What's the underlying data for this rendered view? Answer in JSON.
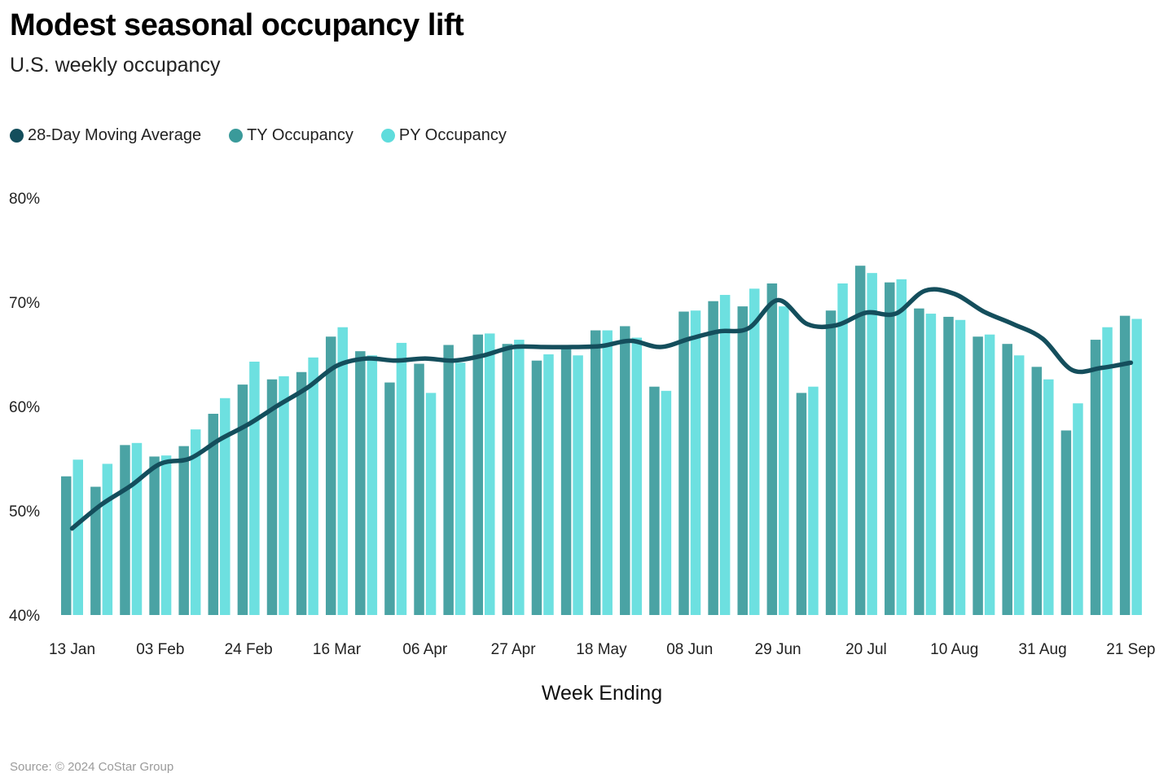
{
  "title": "Modest seasonal occupancy lift",
  "subtitle": "U.S. weekly occupancy",
  "source": "Source: © 2024 CoStar Group",
  "colors": {
    "ty": "#4aa3a4",
    "py": "#6de0e0",
    "ma": "#144e5c",
    "ty_swatch": "#3a9a9a",
    "py_swatch": "#5fdcdc"
  },
  "chart_data": {
    "type": "bar",
    "title": "Modest seasonal occupancy lift",
    "subtitle": "U.S. weekly occupancy",
    "xlabel": "Week Ending",
    "ylabel": "",
    "ylim": [
      40,
      80
    ],
    "yticks": [
      "40%",
      "50%",
      "60%",
      "70%",
      "80%"
    ],
    "yticks_values": [
      40,
      50,
      60,
      70,
      80
    ],
    "xticks": [
      "13 Jan",
      "03 Feb",
      "24 Feb",
      "16 Mar",
      "06 Apr",
      "27 Apr",
      "18 May",
      "08 Jun",
      "29 Jun",
      "20 Jul",
      "10 Aug",
      "31 Aug",
      "21 Sep"
    ],
    "xtick_every": 3,
    "categories": [
      "13 Jan",
      "20 Jan",
      "27 Jan",
      "03 Feb",
      "10 Feb",
      "17 Feb",
      "24 Feb",
      "02 Mar",
      "09 Mar",
      "16 Mar",
      "23 Mar",
      "30 Mar",
      "06 Apr",
      "13 Apr",
      "20 Apr",
      "27 Apr",
      "04 May",
      "11 May",
      "18 May",
      "25 May",
      "01 Jun",
      "08 Jun",
      "15 Jun",
      "22 Jun",
      "29 Jun",
      "06 Jul",
      "13 Jul",
      "20 Jul",
      "27 Jul",
      "03 Aug",
      "10 Aug",
      "17 Aug",
      "24 Aug",
      "31 Aug",
      "07 Sep",
      "14 Sep",
      "21 Sep"
    ],
    "legend": [
      "28-Day Moving Average",
      "TY Occupancy",
      "PY Occupancy"
    ],
    "series": [
      {
        "name": "TY Occupancy",
        "type": "bar",
        "values": [
          53.3,
          52.3,
          56.3,
          55.2,
          56.2,
          59.3,
          62.1,
          62.6,
          63.3,
          66.7,
          65.3,
          62.3,
          64.1,
          65.9,
          66.9,
          66.0,
          64.4,
          65.9,
          67.3,
          67.7,
          61.9,
          69.1,
          70.1,
          69.6,
          71.8,
          61.3,
          69.2,
          73.5,
          71.9,
          69.4,
          68.6,
          66.7,
          66.0,
          63.8,
          57.7,
          66.4,
          68.7
        ]
      },
      {
        "name": "PY Occupancy",
        "type": "bar",
        "values": [
          54.9,
          54.5,
          56.5,
          55.3,
          57.8,
          60.8,
          64.3,
          62.9,
          64.7,
          67.6,
          64.9,
          66.1,
          61.3,
          64.2,
          67.0,
          66.4,
          65.0,
          64.9,
          67.3,
          66.6,
          61.5,
          69.2,
          70.7,
          71.3,
          69.6,
          61.9,
          71.8,
          72.8,
          72.2,
          68.9,
          68.3,
          66.9,
          64.9,
          62.6,
          60.3,
          67.6,
          68.4
        ]
      },
      {
        "name": "28-Day Moving Average",
        "type": "line",
        "values": [
          48.3,
          50.6,
          52.4,
          54.5,
          55.0,
          56.8,
          58.3,
          60.1,
          61.8,
          63.9,
          64.6,
          64.4,
          64.6,
          64.4,
          64.9,
          65.7,
          65.7,
          65.7,
          65.8,
          66.3,
          65.7,
          66.5,
          67.2,
          67.5,
          70.2,
          67.9,
          67.8,
          69.0,
          68.9,
          71.1,
          70.8,
          69.1,
          67.9,
          66.5,
          63.5,
          63.7,
          64.2
        ]
      }
    ]
  }
}
